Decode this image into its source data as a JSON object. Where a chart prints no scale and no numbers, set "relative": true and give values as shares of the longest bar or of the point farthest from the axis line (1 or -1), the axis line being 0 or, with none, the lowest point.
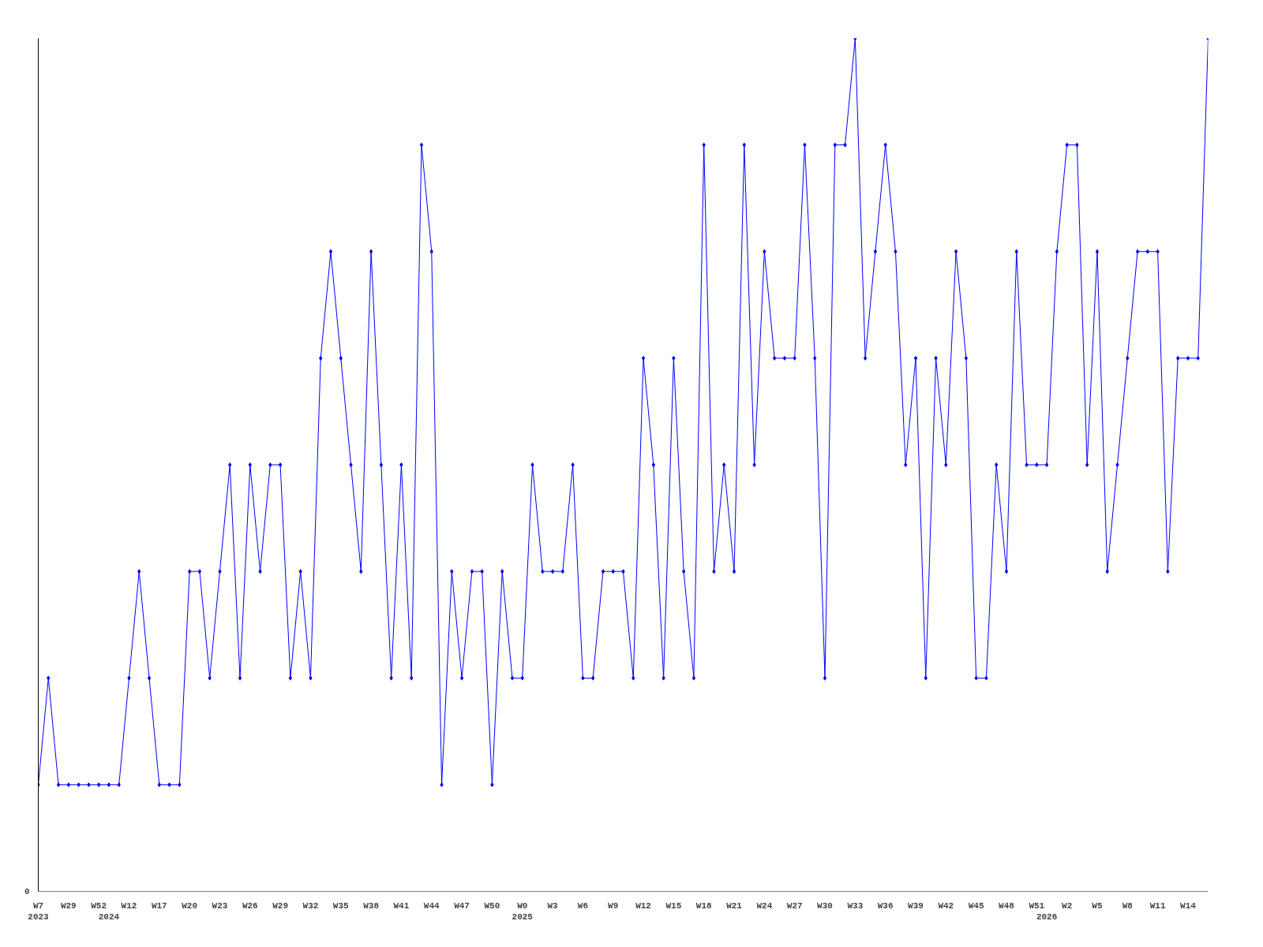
{
  "chart_data": {
    "type": "line",
    "relative": true,
    "marker": "diamond",
    "line_style": "solid",
    "grid": false,
    "categories": [
      "W7\n2023",
      null,
      null,
      "W29",
      null,
      null,
      "W52",
      "\n2024",
      null,
      "W12",
      null,
      null,
      "W17",
      null,
      null,
      "W20",
      null,
      null,
      "W23",
      null,
      null,
      "W26",
      null,
      null,
      "W29",
      null,
      null,
      "W32",
      null,
      null,
      "W35",
      null,
      null,
      "W38",
      null,
      null,
      "W41",
      null,
      null,
      "W44",
      null,
      null,
      "W47",
      null,
      null,
      "W50",
      null,
      null,
      "W0\n2025",
      null,
      null,
      "W3",
      null,
      null,
      "W6",
      null,
      null,
      "W9",
      null,
      null,
      "W12",
      null,
      null,
      "W15",
      null,
      null,
      "W18",
      null,
      null,
      "W21",
      null,
      null,
      "W24",
      null,
      null,
      "W27",
      null,
      null,
      "W30",
      null,
      null,
      "W33",
      null,
      null,
      "W36",
      null,
      null,
      "W39",
      null,
      null,
      "W42",
      null,
      null,
      "W45",
      null,
      null,
      "W48",
      null,
      null,
      "W51",
      "\n2026",
      null,
      "W2",
      null,
      null,
      "W5",
      null,
      null,
      "W8",
      null,
      null,
      "W11",
      null,
      null,
      "W14",
      null,
      null
    ],
    "series": [
      {
        "color": "#0000ff",
        "values": [
          0.125,
          0.25,
          0.125,
          0.125,
          0.125,
          0.125,
          0.125,
          0.125,
          0.125,
          0.25,
          0.375,
          0.25,
          0.125,
          0.125,
          0.125,
          0.375,
          0.375,
          0.25,
          0.375,
          0.5,
          0.25,
          0.5,
          0.375,
          0.5,
          0.5,
          0.25,
          0.375,
          0.25,
          0.625,
          0.75,
          0.625,
          0.5,
          0.375,
          0.75,
          0.5,
          0.25,
          0.5,
          0.25,
          0.875,
          0.75,
          0.125,
          0.375,
          0.25,
          0.375,
          0.375,
          0.125,
          0.375,
          0.25,
          0.25,
          0.5,
          0.375,
          0.375,
          0.375,
          0.5,
          0.25,
          0.25,
          0.375,
          0.375,
          0.375,
          0.25,
          0.625,
          0.5,
          0.25,
          0.625,
          0.375,
          0.25,
          0.875,
          0.375,
          0.5,
          0.375,
          0.875,
          0.5,
          0.75,
          0.625,
          0.625,
          0.625,
          0.875,
          0.625,
          0.25,
          0.875,
          0.875,
          1,
          0.625,
          0.75,
          0.875,
          0.75,
          0.5,
          0.625,
          0.25,
          0.625,
          0.5,
          0.75,
          0.625,
          0.25,
          0.25,
          0.5,
          0.375,
          0.75,
          0.5,
          0.5,
          0.5,
          0.75,
          0.875,
          0.875,
          0.5,
          0.75,
          0.375,
          0.5,
          0.625,
          0.75,
          0.75,
          0.75,
          0.375,
          0.625,
          0.625,
          0.625,
          1
        ]
      }
    ],
    "annotations": [
      "0"
    ]
  }
}
